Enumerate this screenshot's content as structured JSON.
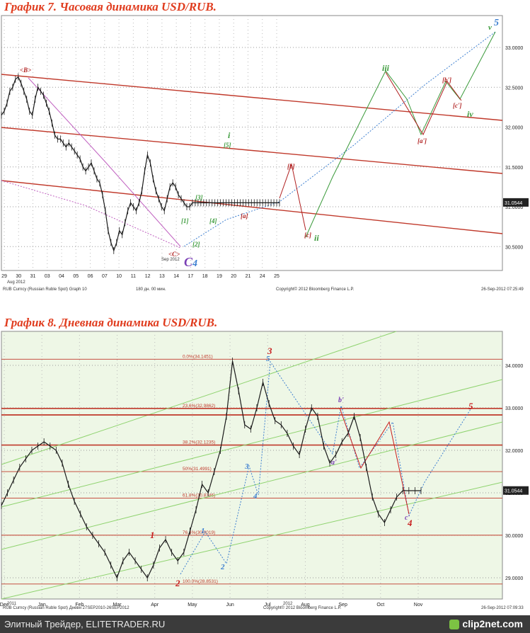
{
  "chart_data": [
    {
      "type": "line",
      "title": "График 7.   Часовая динамика USD/RUB.",
      "instrument": "RUB Curncy (Russian Ruble Spot) Graph 10",
      "interval": "180 дн. 00 мин.",
      "copyright": "Copyright© 2012 Bloomberg Finance L.P.",
      "timestamp": "26-Sep-2012 07:25:49",
      "ylim": [
        30.2,
        33.4
      ],
      "yticks": [
        "33.0000",
        "32.5000",
        "32.0000",
        "31.5000",
        "31.0000",
        "30.5000"
      ],
      "last_value": "31.0544",
      "xticks": [
        "29",
        "30",
        "31",
        "03",
        "04",
        "05",
        "06",
        "07",
        "10",
        "11",
        "12",
        "13",
        "14",
        "17",
        "18",
        "19",
        "20",
        "21",
        "24",
        "25"
      ],
      "month_labels": [
        "Aug 2012",
        "Sep 2012"
      ],
      "series": [
        {
          "name": "USD/RUB hourly",
          "color": "#1a1a1a",
          "x": [
            0,
            1,
            2,
            3,
            4,
            5,
            6,
            7,
            8,
            9,
            10,
            11,
            12,
            13,
            14,
            15,
            16,
            17,
            18,
            19,
            20,
            21,
            22,
            23,
            24,
            25,
            26,
            27,
            28,
            29,
            30,
            31,
            32,
            33,
            34,
            35,
            36,
            37,
            38,
            39,
            40,
            41,
            42,
            43,
            44,
            45,
            46,
            47,
            48,
            49,
            50,
            51,
            52,
            53,
            54,
            55,
            56,
            57,
            58,
            59,
            60,
            61,
            62,
            63,
            64,
            65,
            66,
            67,
            68,
            69,
            70,
            71,
            72,
            73,
            74,
            75,
            76,
            77,
            78,
            79,
            80,
            81,
            82,
            83,
            84,
            85,
            86,
            87,
            88,
            89,
            90,
            91,
            92,
            93,
            94,
            95,
            96,
            97,
            98,
            99
          ],
          "y": [
            32.15,
            32.2,
            32.3,
            32.45,
            32.5,
            32.6,
            32.63,
            32.55,
            32.45,
            32.35,
            32.2,
            32.15,
            32.35,
            32.5,
            32.45,
            32.4,
            32.3,
            32.2,
            32.05,
            31.9,
            31.85,
            31.85,
            31.8,
            31.75,
            31.8,
            31.75,
            31.7,
            31.65,
            31.6,
            31.5,
            31.45,
            31.5,
            31.55,
            31.45,
            31.35,
            31.3,
            31.15,
            30.95,
            30.7,
            30.55,
            30.45,
            30.55,
            30.7,
            30.65,
            30.8,
            30.95,
            31.05,
            31.0,
            30.95,
            31.05,
            31.2,
            31.45,
            31.65,
            31.55,
            31.35,
            31.2,
            31.1,
            31.0,
            30.95,
            31.1,
            31.25,
            31.3,
            31.25,
            31.15,
            31.1,
            31.05,
            31.0,
            31.0,
            31.05,
            31.05,
            31.05,
            31.05,
            31.05,
            31.05,
            31.05,
            31.05,
            31.05,
            31.05,
            31.05,
            31.05,
            31.05,
            31.05,
            31.05,
            31.05,
            31.05,
            31.05,
            31.05,
            31.05,
            31.05,
            31.05,
            31.05,
            31.05,
            31.05,
            31.05,
            31.05,
            31.05,
            31.05,
            31.05,
            31.05,
            31.05
          ]
        }
      ],
      "annotations": [
        {
          "text": "<B>",
          "color": "#b02020"
        },
        {
          "text": "<C>",
          "color": "#b02020"
        },
        {
          "text": "C",
          "color": "#7a3fb5"
        },
        {
          "text": "4",
          "color": "#3d7fd0"
        },
        {
          "text": "[1]",
          "color": "#3a9a3a"
        },
        {
          "text": "[2]",
          "color": "#3a9a3a"
        },
        {
          "text": "[3]",
          "color": "#3a9a3a"
        },
        {
          "text": "[4]",
          "color": "#3a9a3a"
        },
        {
          "text": "[5]",
          "color": "#3a9a3a"
        },
        {
          "text": "i",
          "color": "#3a9a3a"
        },
        {
          "text": "ii",
          "color": "#3a9a3a"
        },
        {
          "text": "iii",
          "color": "#3a9a3a"
        },
        {
          "text": "iv",
          "color": "#3a9a3a"
        },
        {
          "text": "v",
          "color": "#3a9a3a"
        },
        {
          "text": "5",
          "color": "#3d7fd0"
        },
        {
          "text": "[a]",
          "color": "#b02020"
        },
        {
          "text": "[b]",
          "color": "#b02020"
        },
        {
          "text": "[c]",
          "color": "#b02020"
        },
        {
          "text": "[a']",
          "color": "#b02020"
        },
        {
          "text": "[b']",
          "color": "#b02020"
        },
        {
          "text": "[c']",
          "color": "#b02020"
        }
      ]
    },
    {
      "type": "line",
      "title": "График 8.   Дневная динамика USD/RUB.",
      "instrument": "RUB Curncy (Russian Ruble Spot) Дневн 27SEP2010-26SEP2012",
      "copyright": "Copyright© 2012 Bloomberg Finance L.P.",
      "timestamp": "26-Sep-2012 07:09:33",
      "ylim": [
        28.5,
        34.8
      ],
      "yticks": [
        "34.0000",
        "33.0000",
        "32.0000",
        "31.0000",
        "30.0000",
        "29.0000"
      ],
      "last_value": "31.0544",
      "xticks": [
        "Dec",
        "Jan",
        "Feb",
        "Mar",
        "Apr",
        "May",
        "Jun",
        "Jul",
        "Aug",
        "Sep",
        "Oct",
        "Nov"
      ],
      "year_labels": [
        "2011",
        "2012"
      ],
      "fib_levels": [
        {
          "label": "0.0%(34.1451)",
          "value": 34.1451
        },
        {
          "label": "23.6%(32.9862)",
          "value": 32.9862
        },
        {
          "label": "38.2%(32.1235)",
          "value": 32.1235
        },
        {
          "label": "50%(31.4991)",
          "value": 31.4991
        },
        {
          "label": "61.8%(30.8746)",
          "value": 30.8746
        },
        {
          "label": "76.4%(30.0019)",
          "value": 30.0019
        },
        {
          "label": "100.0%(28.8531)",
          "value": 28.8531
        }
      ],
      "series": [
        {
          "name": "USD/RUB daily",
          "color": "#1a1a1a",
          "x": [
            0,
            1,
            2,
            3,
            4,
            5,
            6,
            7,
            8,
            9,
            10,
            11,
            12,
            13,
            14,
            15,
            16,
            17,
            18,
            19,
            20,
            21,
            22,
            23,
            24,
            25,
            26,
            27,
            28,
            29,
            30,
            31,
            32,
            33,
            34,
            35,
            36,
            37,
            38,
            39,
            40,
            41,
            42,
            43,
            44,
            45,
            46,
            47,
            48,
            49,
            50,
            51,
            52,
            53,
            54,
            55,
            56,
            57,
            58,
            59,
            60,
            61,
            62,
            63,
            64,
            65,
            66,
            67,
            68,
            69
          ],
          "y": [
            30.7,
            31.0,
            31.3,
            31.6,
            31.8,
            32.0,
            32.1,
            32.2,
            32.1,
            32.0,
            31.7,
            31.2,
            30.8,
            30.5,
            30.2,
            30.0,
            29.8,
            29.6,
            29.3,
            29.0,
            29.4,
            29.6,
            29.4,
            29.2,
            29.0,
            29.3,
            29.7,
            29.9,
            29.6,
            29.4,
            29.6,
            30.1,
            30.6,
            31.2,
            31.0,
            31.5,
            32.0,
            32.8,
            34.1,
            33.4,
            32.6,
            32.5,
            33.0,
            33.6,
            33.1,
            32.7,
            32.6,
            32.4,
            32.1,
            31.9,
            32.5,
            33.0,
            32.8,
            32.1,
            31.7,
            31.9,
            32.2,
            32.4,
            32.8,
            32.3,
            31.6,
            30.9,
            30.5,
            30.3,
            30.6,
            30.9,
            31.05,
            31.05,
            31.05,
            31.05
          ]
        }
      ],
      "annotations": [
        {
          "text": "1",
          "color": "#c81e1e"
        },
        {
          "text": "2",
          "color": "#c81e1e"
        },
        {
          "text": "3",
          "color": "#c81e1e"
        },
        {
          "text": "4",
          "color": "#c81e1e"
        },
        {
          "text": "5",
          "color": "#c81e1e"
        },
        {
          "text": "1",
          "color": "#3d7fd0"
        },
        {
          "text": "2",
          "color": "#3d7fd0"
        },
        {
          "text": "3",
          "color": "#3d7fd0"
        },
        {
          "text": "4",
          "color": "#3d7fd0"
        },
        {
          "text": "5",
          "color": "#3d7fd0"
        },
        {
          "text": "a'",
          "color": "#7a3fb5"
        },
        {
          "text": "b'",
          "color": "#7a3fb5"
        },
        {
          "text": "c'",
          "color": "#7a3fb5"
        }
      ]
    }
  ],
  "footer": {
    "left_text": "Элитный Трейдер, ELITETRADER.RU",
    "right_text": "clip2net.com"
  }
}
